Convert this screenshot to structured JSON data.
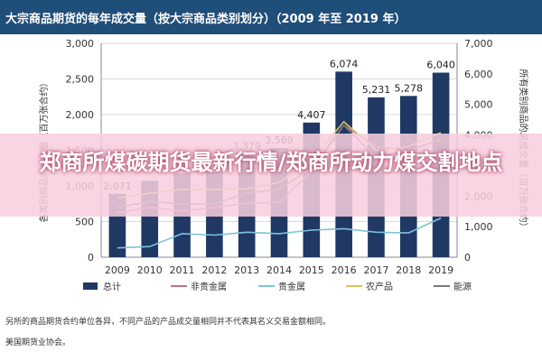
{
  "header": {
    "title": "大宗商品期货的每年成交量（按大宗商品类别划分）（2009 年至 2019 年）"
  },
  "banner": {
    "text": "郑商所煤碳期货最新行情/郑商所动力煤交割地点"
  },
  "notes": {
    "line1": "另所的商品期货合约单位各异，不同产品的产品成交量相同并不代表其名义交易金额相同。",
    "line2": "美国期货业协会。"
  },
  "chart_data": {
    "type": "bar",
    "categories": [
      "2009",
      "2010",
      "2011",
      "2012",
      "2013",
      "2014",
      "2015",
      "2016",
      "2017",
      "2018",
      "2019"
    ],
    "ylabel": "各类别商品的成交量（百万张合约）",
    "y2label": "所有类别商品的总成交量（百万张合约）",
    "ylim": [
      0,
      3000
    ],
    "y2lim": [
      0,
      7000
    ],
    "yticks": [
      "0",
      "500",
      "1,000",
      "1,500",
      "2,000",
      "2,500",
      "3,000"
    ],
    "y2ticks": [
      "0",
      "1,000",
      "2,000",
      "3,000",
      "4,000",
      "5,000",
      "6,000",
      "7,000"
    ],
    "grid": true,
    "legend": "bottom",
    "series": [
      {
        "name": "总计",
        "type": "bar",
        "axis": "right",
        "color": "#1f3864",
        "values": [
          2071,
          2500,
          2750,
          2800,
          3379,
          3569,
          4407,
          6074,
          5231,
          5278,
          6040
        ],
        "labels": [
          "2,071",
          "",
          "",
          "",
          "3,379",
          "3,569",
          "4,407",
          "6,074",
          "5,231",
          "5,278",
          "6,040"
        ]
      },
      {
        "name": "非贵金属",
        "type": "line",
        "axis": "left",
        "color": "#c0748a",
        "values": [
          620,
          700,
          650,
          700,
          760,
          770,
          1200,
          1850,
          1550,
          1500,
          1650
        ]
      },
      {
        "name": "贵金属",
        "type": "line",
        "axis": "left",
        "color": "#7ec4d4",
        "values": [
          130,
          150,
          330,
          310,
          350,
          330,
          380,
          400,
          350,
          340,
          550
        ]
      },
      {
        "name": "农产品",
        "type": "line",
        "axis": "left",
        "color": "#d8c25c",
        "values": [
          830,
          900,
          950,
          950,
          960,
          1050,
          1350,
          1900,
          1500,
          1550,
          1750
        ]
      },
      {
        "name": "能源",
        "type": "line",
        "axis": "left",
        "color": "#7a7a7a",
        "values": [
          700,
          780,
          750,
          750,
          900,
          950,
          1250,
          1850,
          1400,
          1500,
          1650
        ]
      }
    ]
  }
}
